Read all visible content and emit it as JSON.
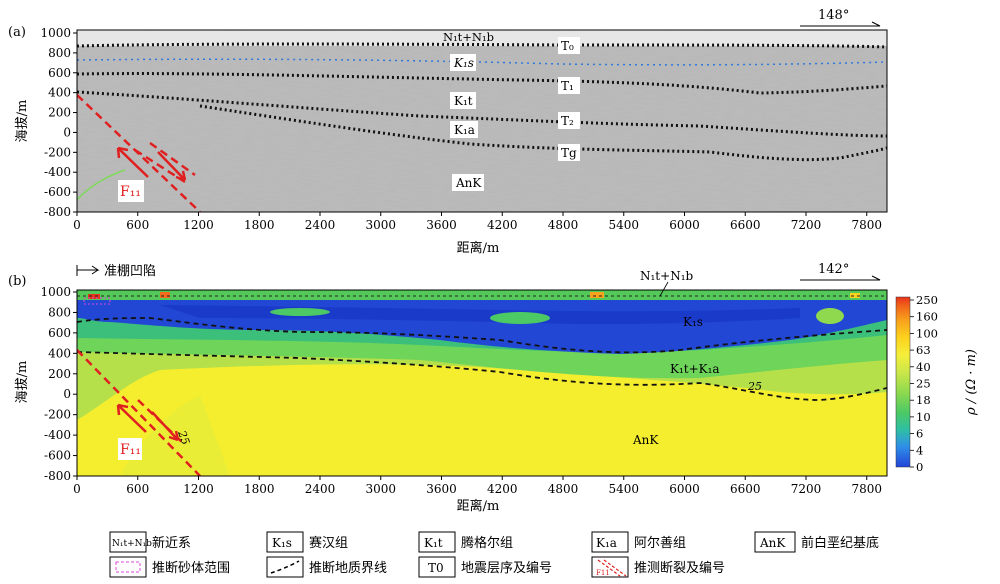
{
  "panel_a": {
    "tag": "(a)",
    "azimuth": "148°",
    "ylabel": "海拔/m",
    "xlabel": "距离/m",
    "yticks": [
      "1000",
      "800",
      "600",
      "400",
      "200",
      "0",
      "-200",
      "-400",
      "-600",
      "-800"
    ],
    "xticks": [
      "0",
      "600",
      "1200",
      "1800",
      "2400",
      "3000",
      "3600",
      "4200",
      "4800",
      "5400",
      "6000",
      "6600",
      "7200",
      "7800"
    ],
    "labels": {
      "n1tb": "N₁t+N₁b",
      "k1s": "K₁s",
      "k1t": "K₁t",
      "k1a": "K₁a",
      "ank": "AnK",
      "t0": "T₀",
      "t1": "T₁",
      "t2": "T₂",
      "tg": "Tg",
      "fault": "F₁₁"
    }
  },
  "panel_b": {
    "tag": "(b)",
    "azimuth": "142°",
    "basin": "准棚凹陷",
    "ylabel": "海拔/m",
    "xlabel": "距离/m",
    "yticks": [
      "1000",
      "800",
      "600",
      "400",
      "200",
      "0",
      "-200",
      "-400",
      "-600",
      "-800"
    ],
    "xticks": [
      "0",
      "600",
      "1200",
      "1800",
      "2400",
      "3000",
      "3600",
      "4200",
      "4800",
      "5400",
      "6000",
      "6600",
      "7200",
      "7800"
    ],
    "labels": {
      "n1tb": "N₁t+N₁b",
      "k1s": "K₁s",
      "k1ta": "K₁t+K₁a",
      "ank": "AnK",
      "fault": "F₁₁",
      "contour1": "25",
      "contour2": "25"
    },
    "colorbar": {
      "title": "ρ / (Ω · m)",
      "ticks": [
        "250",
        "160",
        "100",
        "63",
        "40",
        "25",
        "18",
        "10",
        "6",
        "4",
        "0"
      ],
      "colors": [
        "#e8321c",
        "#f26a1b",
        "#f8a31c",
        "#fcd21e",
        "#f5ef3a",
        "#c8e64a",
        "#8fd94e",
        "#4cc964",
        "#2fbfa4",
        "#2f8fe8",
        "#2244d8"
      ]
    }
  },
  "legend": [
    {
      "key": "N₁t+N₁b",
      "label": "新近系"
    },
    {
      "key": "K₁s",
      "label": "赛汉组"
    },
    {
      "key": "K₁t",
      "label": "腾格尔组"
    },
    {
      "key": "K₁a",
      "label": "阿尔善组"
    },
    {
      "key": "AnK",
      "label": "前白垩纪基底"
    },
    {
      "key": "sand",
      "label": "推断砂体范围"
    },
    {
      "key": "boundary",
      "label": "推断地质界线"
    },
    {
      "key": "T0",
      "label": "地震层序及编号"
    },
    {
      "key": "F11",
      "label": "推测断裂及编号"
    }
  ]
}
